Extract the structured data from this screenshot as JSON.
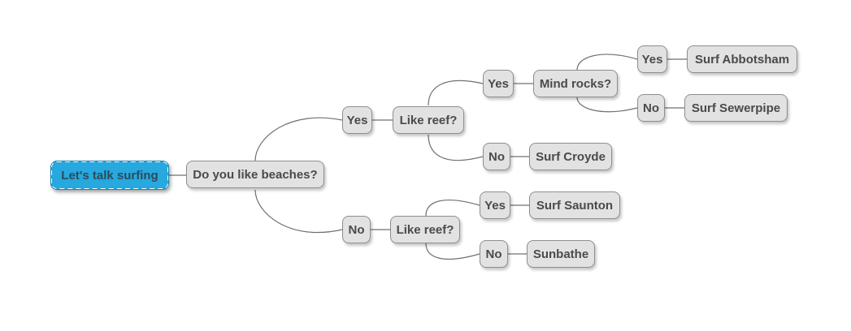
{
  "mindmap": {
    "root": {
      "label": "Let's talk surfing",
      "color": "#27a8de"
    },
    "q1": {
      "label": "Do you like beaches?"
    },
    "yes_branch": {
      "answer": "Yes",
      "question": "Like reef?",
      "yes": {
        "answer": "Yes",
        "question": "Mind rocks?",
        "yes": {
          "answer": "Yes",
          "outcome": "Surf Abbotsham"
        },
        "no": {
          "answer": "No",
          "outcome": "Surf Sewerpipe"
        }
      },
      "no": {
        "answer": "No",
        "outcome": "Surf Croyde"
      }
    },
    "no_branch": {
      "answer": "No",
      "question": "Like reef?",
      "yes": {
        "answer": "Yes",
        "outcome": "Surf Saunton"
      },
      "no": {
        "answer": "No",
        "outcome": "Sunbathe"
      }
    },
    "node_color": "#e2e2e2",
    "connector_color": "#707070"
  }
}
